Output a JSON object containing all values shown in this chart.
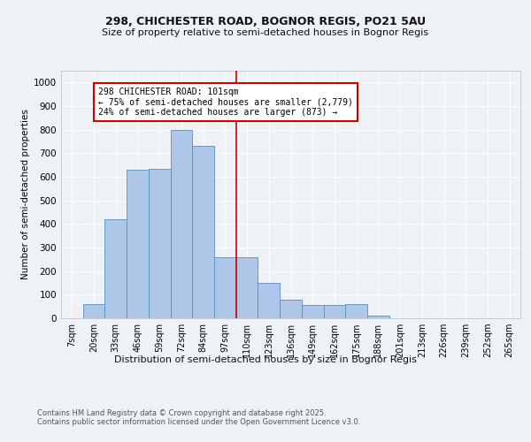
{
  "title1": "298, CHICHESTER ROAD, BOGNOR REGIS, PO21 5AU",
  "title2": "Size of property relative to semi-detached houses in Bognor Regis",
  "xlabel": "Distribution of semi-detached houses by size in Bognor Regis",
  "ylabel": "Number of semi-detached properties",
  "bin_labels": [
    "7sqm",
    "20sqm",
    "33sqm",
    "46sqm",
    "59sqm",
    "72sqm",
    "84sqm",
    "97sqm",
    "110sqm",
    "123sqm",
    "136sqm",
    "149sqm",
    "162sqm",
    "175sqm",
    "188sqm",
    "201sqm",
    "213sqm",
    "226sqm",
    "239sqm",
    "252sqm",
    "265sqm"
  ],
  "bar_heights": [
    0,
    60,
    420,
    630,
    635,
    800,
    730,
    260,
    260,
    150,
    80,
    55,
    55,
    60,
    10,
    0,
    0,
    0,
    0,
    0,
    0
  ],
  "bar_color": "#aec6e8",
  "bar_edge_color": "#5a8fc0",
  "property_line_x": 7.5,
  "annotation_text": "298 CHICHESTER ROAD: 101sqm\n← 75% of semi-detached houses are smaller (2,779)\n24% of semi-detached houses are larger (873) →",
  "annotation_box_color": "#ffffff",
  "annotation_box_edge_color": "#cc0000",
  "vline_color": "#cc0000",
  "background_color": "#eef2f7",
  "plot_background": "#eef2f7",
  "grid_color": "#ffffff",
  "ylim": [
    0,
    1050
  ],
  "yticks": [
    0,
    100,
    200,
    300,
    400,
    500,
    600,
    700,
    800,
    900,
    1000
  ],
  "footer": "Contains HM Land Registry data © Crown copyright and database right 2025.\nContains public sector information licensed under the Open Government Licence v3.0."
}
